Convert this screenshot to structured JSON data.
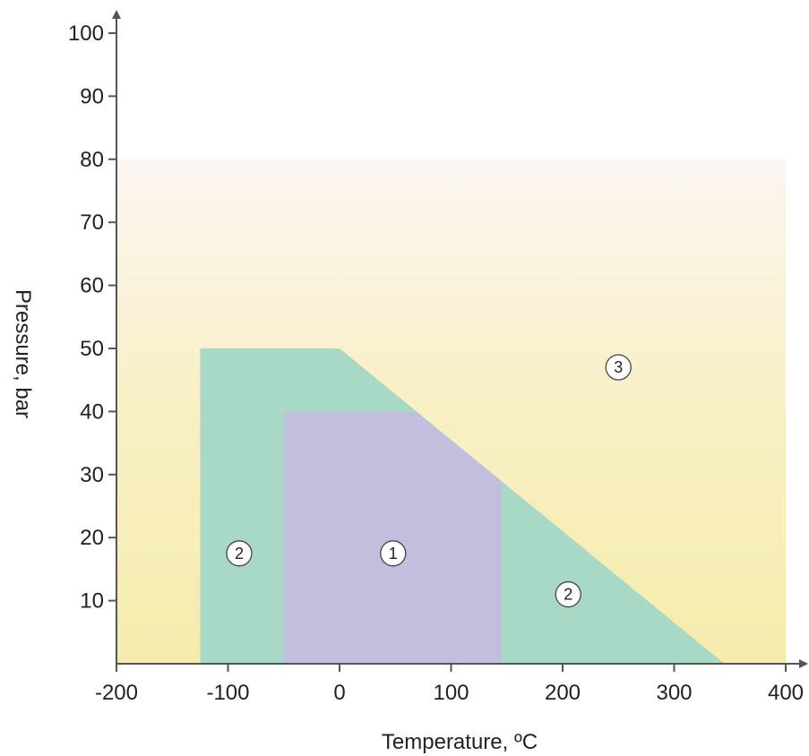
{
  "chart_data": {
    "type": "area",
    "title": "",
    "xlabel": "Temperature, ºC",
    "ylabel": "Pressure, bar",
    "xlim": [
      -200,
      400
    ],
    "ylim": [
      0,
      100
    ],
    "xticks": [
      -200,
      -100,
      0,
      100,
      200,
      300,
      400
    ],
    "yticks": [
      10,
      20,
      30,
      40,
      50,
      60,
      70,
      80,
      90,
      100
    ],
    "grid": false,
    "regions": [
      {
        "label": "3",
        "color": "#f7ecb0",
        "polygon": [
          [
            -200,
            0
          ],
          [
            400,
            0
          ],
          [
            400,
            80
          ],
          [
            -200,
            80
          ]
        ],
        "label_at": [
          250,
          47
        ]
      },
      {
        "label": "2",
        "color": "#a8d8c6",
        "polygon": [
          [
            -125,
            0
          ],
          [
            345,
            0
          ],
          [
            0,
            50
          ],
          [
            -125,
            50
          ]
        ],
        "label_at": [
          -90,
          17.5
        ]
      },
      {
        "label": "1",
        "color": "#c2bedd",
        "polygon": [
          [
            -50,
            0
          ],
          [
            145,
            0
          ],
          [
            145,
            29
          ],
          [
            68,
            40
          ],
          [
            -50,
            40
          ]
        ],
        "label_at": [
          48,
          17.5
        ]
      }
    ],
    "extra_labels": [
      {
        "label": "2",
        "at": [
          205,
          11
        ]
      }
    ]
  }
}
